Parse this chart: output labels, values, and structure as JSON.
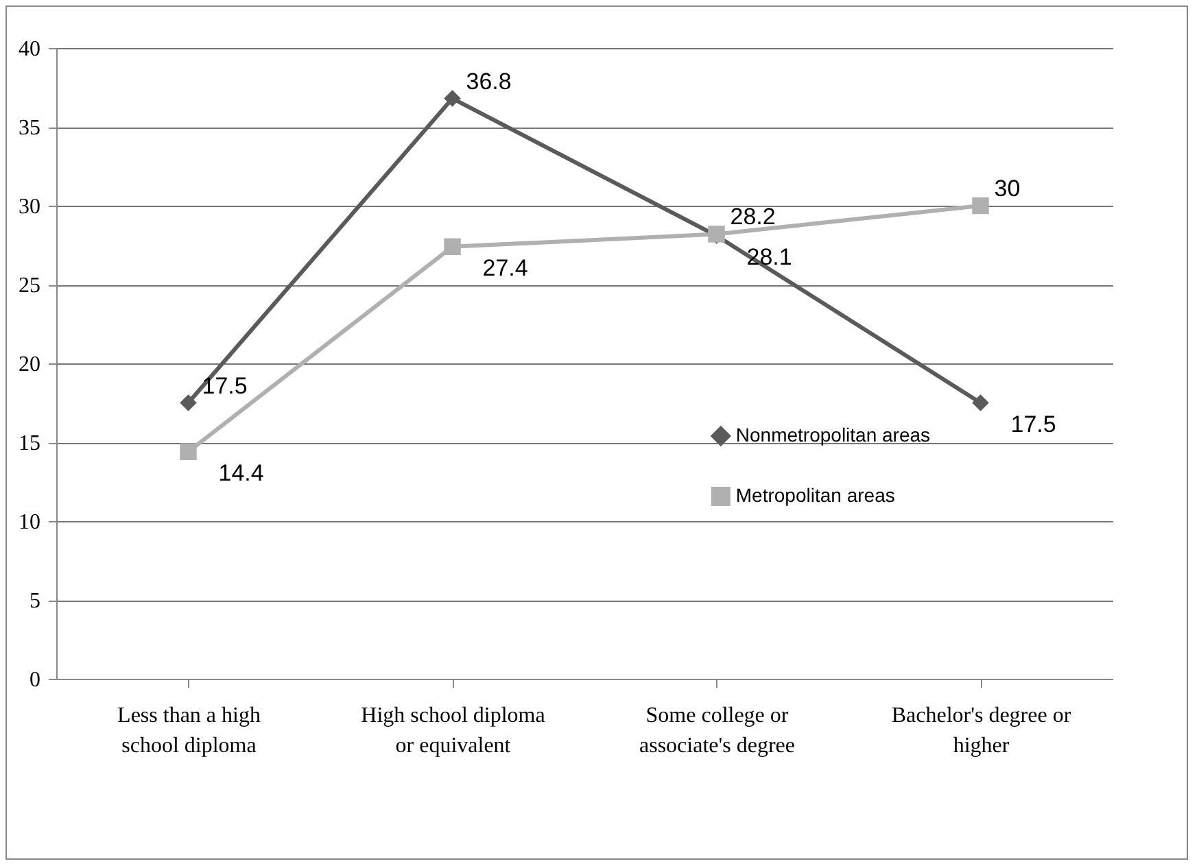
{
  "chart_data": {
    "type": "line",
    "categories": [
      "Less than a high school diploma",
      "High school diploma or equivalent",
      "Some college or associate's degree",
      "Bachelor's degree or higher"
    ],
    "series": [
      {
        "name": "Nonmetropolitan areas",
        "color": "#5a5a5a",
        "marker": "diamond",
        "values": [
          17.5,
          36.8,
          28.1,
          17.5
        ]
      },
      {
        "name": "Metropolitan areas",
        "color": "#b0b0b0",
        "marker": "square",
        "values": [
          14.4,
          27.4,
          28.2,
          30
        ]
      }
    ],
    "ylim": [
      0,
      40
    ],
    "yticks": [
      0,
      5,
      10,
      15,
      20,
      25,
      30,
      35,
      40
    ],
    "grid": "y",
    "legend": "right",
    "data_labels": true
  }
}
